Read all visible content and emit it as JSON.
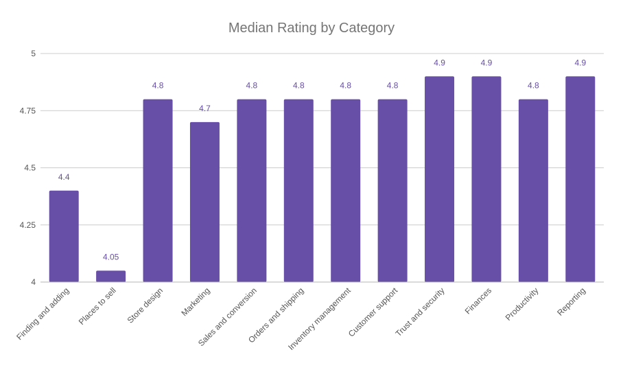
{
  "chart_data": {
    "type": "bar",
    "title": "Median Rating by Category",
    "xlabel": "",
    "ylabel": "",
    "categories": [
      "Finding and adding",
      "Places to sell",
      "Store design",
      "Marketing",
      "Sales and conversion",
      "Orders and shipping",
      "Inventory management",
      "Customer support",
      "Trust and security",
      "Finances",
      "Productivity",
      "Reporting"
    ],
    "values": [
      4.4,
      4.05,
      4.8,
      4.7,
      4.8,
      4.8,
      4.8,
      4.8,
      4.9,
      4.9,
      4.8,
      4.9
    ],
    "data_labels": [
      "4.4",
      "4.05",
      "4.8",
      "4.7",
      "4.8",
      "4.8",
      "4.8",
      "4.8",
      "4.9",
      "4.9",
      "4.8",
      "4.9"
    ],
    "ylim": [
      4,
      5
    ],
    "yticks": [
      4,
      4.25,
      4.5,
      4.75,
      5
    ],
    "ytick_labels": [
      "4",
      "4.25",
      "4.5",
      "4.75",
      "5"
    ],
    "grid": true,
    "legend": "none",
    "colors": {
      "bar": "#674ea7",
      "data_label": "#674ea7"
    }
  }
}
